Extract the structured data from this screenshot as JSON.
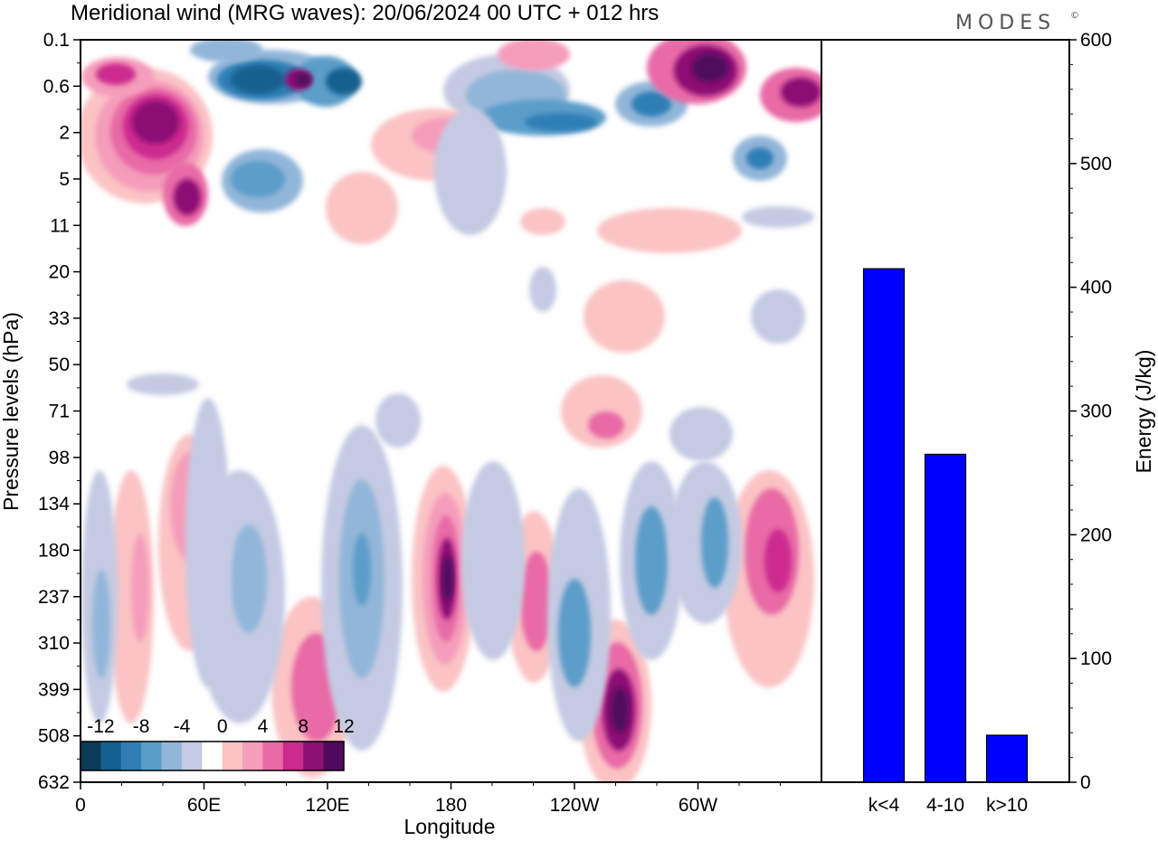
{
  "title": "Meridional wind (MRG waves):  20/06/2024  00 UTC  + 012 hrs",
  "logo": "MODES",
  "logo_mark": "©",
  "chart_data": [
    {
      "type": "heatmap",
      "xlabel": "Longitude",
      "ylabel": "Pressure levels (hPa)",
      "x_ticks": [
        "0",
        "60E",
        "120E",
        "180",
        "120W",
        "60W"
      ],
      "y_ticks": [
        "0.1",
        "0.6",
        "2",
        "5",
        "11",
        "20",
        "33",
        "50",
        "71",
        "98",
        "134",
        "180",
        "237",
        "310",
        "399",
        "508",
        "632"
      ],
      "colorbar": {
        "labels": [
          "-12",
          "-8",
          "-4",
          "0",
          "4",
          "8",
          "12"
        ],
        "levels": [
          -14,
          -12,
          -10,
          -8,
          -6,
          -4,
          -2,
          2,
          4,
          6,
          8,
          10,
          12,
          14
        ],
        "colors": [
          "#0b3a5a",
          "#14608e",
          "#2f7fb6",
          "#5b9dc9",
          "#92b6d9",
          "#c5cae3",
          "#ffffff",
          "#fbc3c4",
          "#f59dbb",
          "#e86aa6",
          "#cc2a8f",
          "#8c1173",
          "#4f0a5e"
        ]
      },
      "grid": false
    },
    {
      "type": "bar",
      "categories": [
        "k<4",
        "4-10",
        "k>10"
      ],
      "values": [
        415,
        265,
        38
      ],
      "ylabel": "Energy (J/kg)",
      "ylim": [
        0,
        600
      ],
      "y_ticks": [
        "0",
        "100",
        "200",
        "300",
        "400",
        "500",
        "600"
      ],
      "bar_color": "#0000ff"
    }
  ]
}
